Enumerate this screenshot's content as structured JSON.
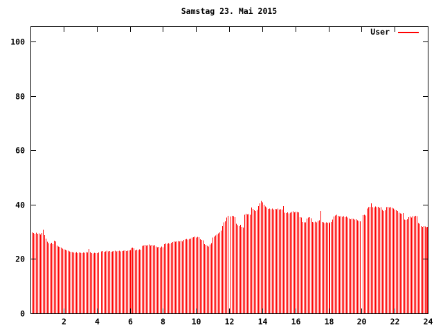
{
  "title": "Samstag 23. Mai 2015",
  "legend": {
    "label": "User",
    "line_color": "#ff0000"
  },
  "colors": {
    "series": "#ff0000",
    "axis": "#000000",
    "background": "#ffffff"
  },
  "chart_data": {
    "type": "bar",
    "style": "impulses",
    "title": "Samstag 23. Mai 2015",
    "xlabel": "",
    "ylabel": "",
    "xlim": [
      0,
      24
    ],
    "ylim": [
      0,
      100
    ],
    "x_ticks": [
      2,
      4,
      6,
      8,
      10,
      12,
      14,
      16,
      18,
      20,
      22,
      24
    ],
    "y_ticks": [
      0,
      20,
      40,
      60,
      80,
      100
    ],
    "grid": false,
    "legend_position": "top-right",
    "sample_interval_minutes": 5,
    "samples_per_day": 288,
    "missing_samples_at_hours": [
      4.17,
      12.0,
      20.0
    ],
    "series": [
      {
        "name": "User",
        "color": "#ff0000",
        "values": [
          29.8,
          29.5,
          29.3,
          29.6,
          29.2,
          29.4,
          29.0,
          29.5,
          30.8,
          28.8,
          27.5,
          26.3,
          25.8,
          25.6,
          25.9,
          25.5,
          26.7,
          26.5,
          25.0,
          24.6,
          24.4,
          24.2,
          23.8,
          23.6,
          23.4,
          23.2,
          23.0,
          22.8,
          22.6,
          22.5,
          22.4,
          22.3,
          22.5,
          22.2,
          22.4,
          22.3,
          22.2,
          22.4,
          22.3,
          22.5,
          22.4,
          23.7,
          22.5,
          22.2,
          22.0,
          22.3,
          22.1,
          22.2,
          22.4,
          null,
          22.8,
          22.9,
          22.7,
          22.8,
          23.0,
          22.8,
          22.9,
          22.7,
          22.8,
          22.9,
          23.0,
          22.8,
          22.9,
          23.0,
          22.8,
          22.9,
          23.0,
          23.1,
          22.9,
          23.0,
          23.1,
          23.3,
          24.0,
          24.2,
          23.9,
          23.2,
          23.4,
          23.3,
          23.5,
          23.4,
          24.8,
          25.0,
          25.2,
          24.9,
          25.1,
          25.3,
          25.0,
          25.2,
          24.9,
          25.1,
          24.5,
          24.3,
          24.4,
          24.2,
          24.5,
          24.3,
          25.5,
          25.7,
          25.6,
          25.8,
          25.6,
          25.9,
          26.2,
          26.4,
          26.3,
          26.5,
          26.6,
          26.4,
          26.7,
          26.5,
          27.0,
          27.2,
          27.4,
          27.1,
          27.3,
          27.5,
          27.8,
          28.0,
          28.2,
          27.9,
          28.1,
          28.0,
          27.2,
          27.0,
          26.8,
          25.5,
          25.2,
          24.8,
          24.5,
          25.3,
          25.8,
          27.8,
          28.3,
          28.6,
          29.0,
          29.4,
          29.8,
          30.4,
          32.0,
          33.4,
          33.8,
          35.3,
          35.9,
          null,
          35.6,
          35.9,
          35.7,
          35.4,
          33.0,
          32.4,
          32.0,
          32.6,
          31.8,
          31.5,
          36.2,
          36.6,
          36.4,
          36.5,
          36.3,
          38.9,
          38.4,
          37.9,
          37.7,
          38.1,
          39.4,
          40.4,
          41.4,
          40.9,
          40.0,
          39.3,
          38.9,
          38.4,
          38.6,
          38.3,
          38.5,
          38.2,
          38.4,
          38.3,
          38.5,
          38.2,
          38.3,
          38.2,
          39.4,
          37.0,
          36.9,
          37.1,
          36.8,
          37.0,
          37.3,
          37.5,
          37.2,
          37.4,
          37.3,
          37.2,
          35.4,
          35.2,
          33.6,
          33.4,
          33.5,
          34.8,
          35.2,
          35.4,
          35.0,
          33.6,
          33.4,
          33.7,
          33.5,
          34.0,
          34.2,
          37.7,
          33.6,
          33.4,
          33.2,
          33.5,
          33.3,
          33.4,
          33.2,
          33.6,
          34.5,
          35.6,
          36.0,
          36.2,
          35.9,
          35.6,
          35.8,
          35.5,
          35.7,
          35.4,
          35.6,
          35.3,
          34.8,
          34.6,
          34.9,
          34.7,
          34.5,
          34.6,
          34.2,
          34.0,
          33.9,
          null,
          36.1,
          36.3,
          36.0,
          38.6,
          39.0,
          39.2,
          40.4,
          39.1,
          38.9,
          39.3,
          39.0,
          39.2,
          38.8,
          39.1,
          38.0,
          37.7,
          37.9,
          39.0,
          39.2,
          38.9,
          39.1,
          38.8,
          38.5,
          38.2,
          37.9,
          37.6,
          37.0,
          36.8,
          36.6,
          36.9,
          34.5,
          34.3,
          34.6,
          35.4,
          35.6,
          35.3,
          35.8,
          35.6,
          35.9,
          35.7,
          33.2,
          33.0,
          32.0,
          31.8,
          32.1,
          31.9,
          31.7,
          31.8
        ]
      }
    ]
  }
}
